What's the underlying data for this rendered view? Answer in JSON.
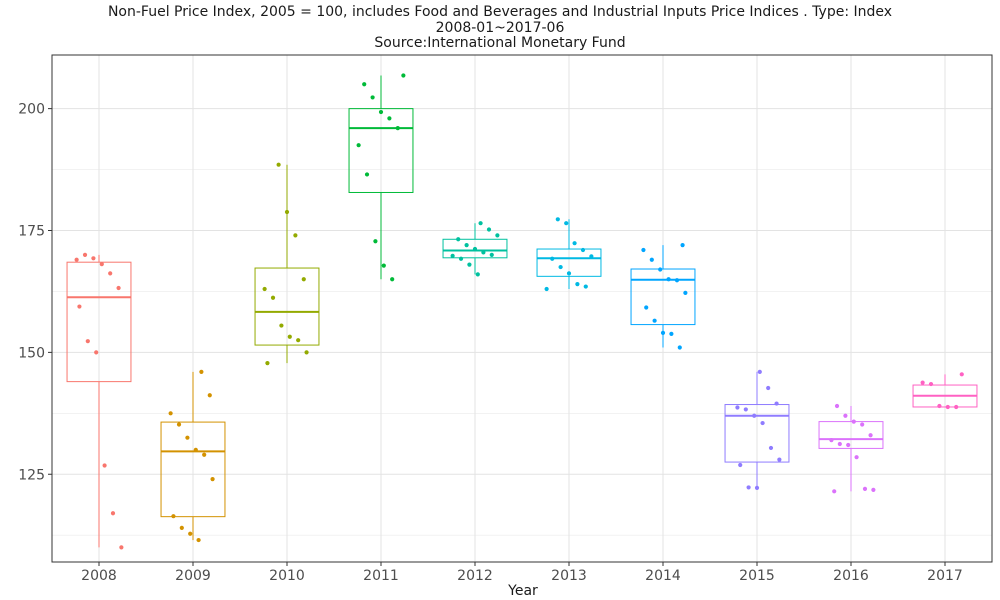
{
  "chart_data": {
    "type": "box",
    "title": "Non-Fuel Price Index, 2005 = 100, includes Food and Beverages and Industrial Inputs Price Indices . Type: Index",
    "subtitle": "2008-01~2017-06",
    "source": "Source:International Monetary Fund",
    "xlabel": "Year",
    "ylabel": "",
    "ylim": [
      107,
      211
    ],
    "yticks": [
      125,
      150,
      175,
      200
    ],
    "grid": true,
    "legend": "none",
    "categories": [
      "2008",
      "2009",
      "2010",
      "2011",
      "2012",
      "2013",
      "2014",
      "2015",
      "2016",
      "2017"
    ],
    "colors": [
      "#F8766D",
      "#D39200",
      "#93AA00",
      "#00BA38",
      "#00C19F",
      "#00B9E3",
      "#00A5FF",
      "#8F7CFF",
      "#DB72FB",
      "#FF61C3"
    ],
    "boxes": [
      {
        "min": 110.0,
        "q1": 144.0,
        "median": 161.3,
        "q3": 168.5,
        "max": 170.0
      },
      {
        "min": 111.5,
        "q1": 116.3,
        "median": 129.7,
        "q3": 135.7,
        "max": 146.0
      },
      {
        "min": 147.8,
        "q1": 151.5,
        "median": 158.3,
        "q3": 167.3,
        "max": 188.5
      },
      {
        "min": 165.0,
        "q1": 182.8,
        "median": 196.0,
        "q3": 200.0,
        "max": 206.8
      },
      {
        "min": 166.0,
        "q1": 169.4,
        "median": 170.9,
        "q3": 173.2,
        "max": 176.5
      },
      {
        "min": 163.0,
        "q1": 165.6,
        "median": 169.3,
        "q3": 171.2,
        "max": 177.3
      },
      {
        "min": 151.0,
        "q1": 155.7,
        "median": 164.9,
        "q3": 167.1,
        "max": 172.0
      },
      {
        "min": 122.2,
        "q1": 127.5,
        "median": 137.0,
        "q3": 139.3,
        "max": 146.0
      },
      {
        "min": 121.5,
        "q1": 130.3,
        "median": 132.2,
        "q3": 135.8,
        "max": 139.0
      },
      {
        "min": 138.8,
        "q1": 138.8,
        "median": 141.1,
        "q3": 143.3,
        "max": 145.5
      }
    ],
    "points": [
      [
        169.0,
        170.0,
        169.3,
        168.1,
        166.2,
        163.2,
        159.4,
        152.3,
        150.0,
        126.8,
        117.0,
        110.0
      ],
      [
        146.0,
        141.2,
        137.5,
        135.2,
        132.5,
        130.0,
        129.0,
        124.0,
        116.4,
        114.0,
        112.8,
        111.5
      ],
      [
        188.5,
        178.8,
        174.0,
        165.0,
        163.0,
        161.2,
        155.5,
        153.2,
        152.5,
        150.0,
        147.8
      ],
      [
        206.8,
        205.0,
        202.3,
        199.3,
        198.0,
        196.0,
        192.5,
        186.5,
        172.8,
        167.8,
        165.0
      ],
      [
        176.5,
        175.2,
        174.0,
        173.2,
        172.0,
        171.2,
        170.5,
        170.0,
        169.8,
        169.2,
        168.0,
        166.0
      ],
      [
        177.3,
        176.5,
        172.4,
        171.0,
        169.7,
        169.2,
        167.5,
        166.2,
        164.0,
        163.5,
        163.0
      ],
      [
        172.0,
        171.0,
        169.0,
        167.0,
        165.0,
        164.8,
        162.2,
        159.2,
        156.5,
        154.0,
        153.8,
        151.0
      ],
      [
        146.0,
        142.7,
        139.5,
        138.7,
        138.3,
        137.0,
        135.5,
        130.4,
        128.0,
        126.9,
        122.3,
        122.2
      ],
      [
        139.0,
        137.0,
        135.8,
        135.2,
        133.0,
        132.0,
        131.2,
        131.0,
        128.5,
        122.0,
        121.8,
        121.5
      ],
      [
        145.5,
        143.8,
        143.5,
        139.0,
        138.8,
        138.8
      ]
    ]
  }
}
